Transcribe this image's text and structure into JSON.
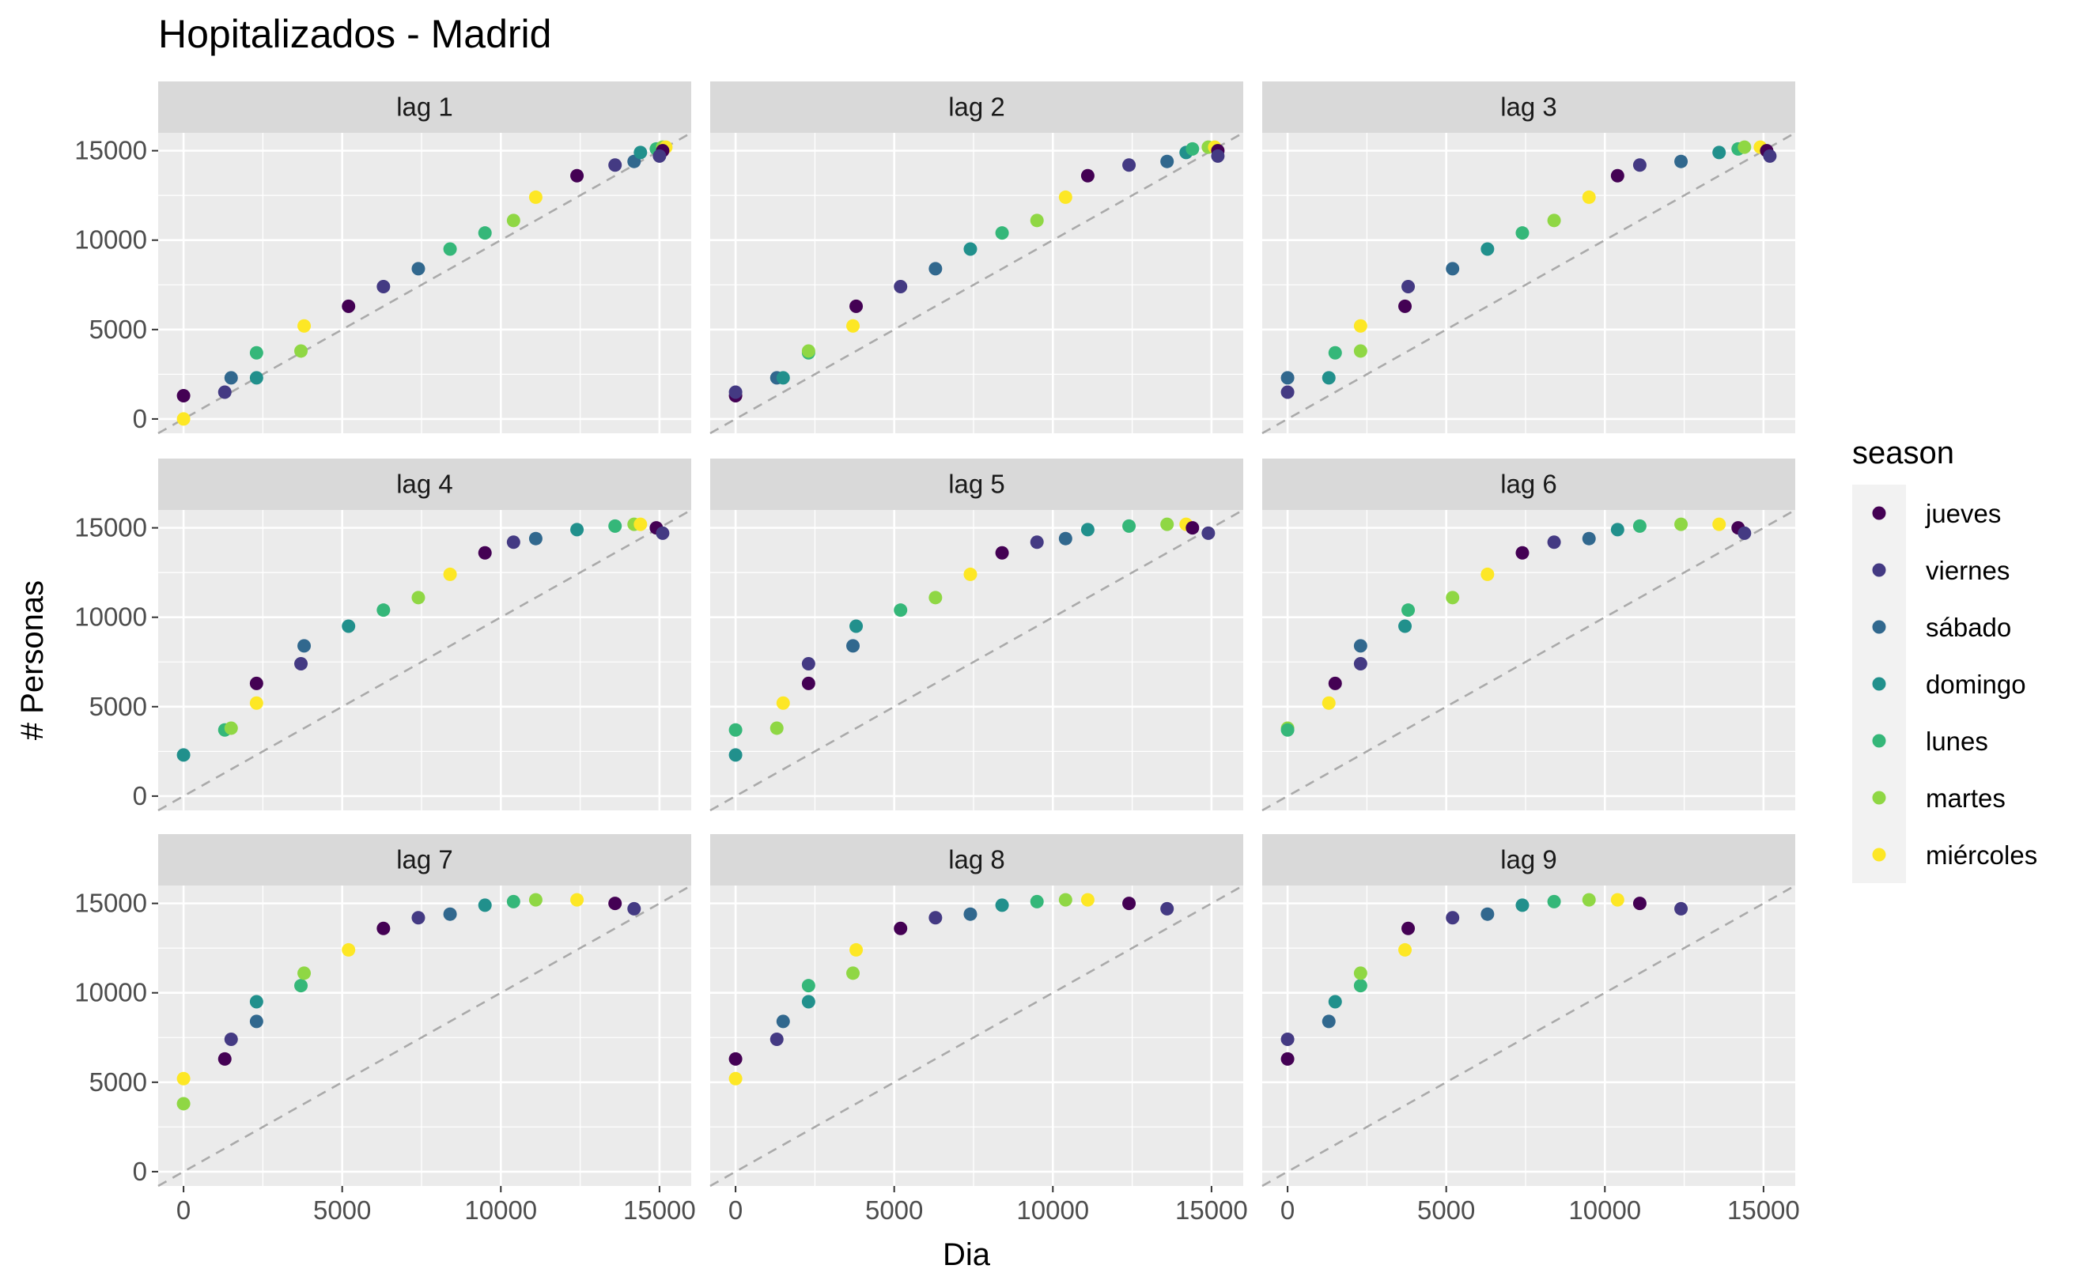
{
  "chart_data": {
    "type": "scatter",
    "title": "Hopitalizados - Madrid",
    "xlabel": "Dia",
    "ylabel": "# Personas",
    "xlim": [
      -800,
      16000
    ],
    "ylim": [
      -800,
      16000
    ],
    "x_ticks": [
      0,
      5000,
      10000,
      15000
    ],
    "y_ticks": [
      0,
      5000,
      10000,
      15000
    ],
    "grid": true,
    "reference_line": "y = x (dashed)",
    "legend": {
      "title": "season",
      "position": "right",
      "items": [
        {
          "label": "jueves",
          "color": "#440154"
        },
        {
          "label": "viernes",
          "color": "#443A83"
        },
        {
          "label": "sábado",
          "color": "#31688E"
        },
        {
          "label": "domingo",
          "color": "#21908C"
        },
        {
          "label": "lunes",
          "color": "#35B779"
        },
        {
          "label": "martes",
          "color": "#8FD744"
        },
        {
          "label": "miércoles",
          "color": "#FDE725"
        }
      ]
    },
    "facets": [
      {
        "label": "lag 1",
        "points": [
          {
            "x": 0,
            "y": 1300,
            "c": 0
          },
          {
            "x": 0,
            "y": 0,
            "c": 6
          },
          {
            "x": 1300,
            "y": 1500,
            "c": 1
          },
          {
            "x": 1500,
            "y": 2300,
            "c": 2
          },
          {
            "x": 2300,
            "y": 2300,
            "c": 3
          },
          {
            "x": 2300,
            "y": 3700,
            "c": 4
          },
          {
            "x": 3700,
            "y": 3800,
            "c": 5
          },
          {
            "x": 3800,
            "y": 5200,
            "c": 6
          },
          {
            "x": 5200,
            "y": 6300,
            "c": 0
          },
          {
            "x": 6300,
            "y": 7400,
            "c": 1
          },
          {
            "x": 7400,
            "y": 8400,
            "c": 2
          },
          {
            "x": 8400,
            "y": 9500,
            "c": 4
          },
          {
            "x": 9500,
            "y": 10400,
            "c": 4
          },
          {
            "x": 10400,
            "y": 11100,
            "c": 5
          },
          {
            "x": 11100,
            "y": 12400,
            "c": 6
          },
          {
            "x": 12400,
            "y": 13600,
            "c": 0
          },
          {
            "x": 13600,
            "y": 14200,
            "c": 1
          },
          {
            "x": 14200,
            "y": 14400,
            "c": 2
          },
          {
            "x": 14400,
            "y": 14900,
            "c": 3
          },
          {
            "x": 14900,
            "y": 15100,
            "c": 4
          },
          {
            "x": 15100,
            "y": 15200,
            "c": 5
          },
          {
            "x": 15200,
            "y": 15200,
            "c": 6
          },
          {
            "x": 15100,
            "y": 15000,
            "c": 0
          },
          {
            "x": 15000,
            "y": 14700,
            "c": 1
          }
        ]
      },
      {
        "label": "lag 2",
        "points": [
          {
            "x": 0,
            "y": 1300,
            "c": 0
          },
          {
            "x": 0,
            "y": 1500,
            "c": 1
          },
          {
            "x": 1300,
            "y": 2300,
            "c": 2
          },
          {
            "x": 1500,
            "y": 2300,
            "c": 3
          },
          {
            "x": 2300,
            "y": 3700,
            "c": 4
          },
          {
            "x": 2300,
            "y": 3800,
            "c": 5
          },
          {
            "x": 3700,
            "y": 5200,
            "c": 6
          },
          {
            "x": 3800,
            "y": 6300,
            "c": 0
          },
          {
            "x": 5200,
            "y": 7400,
            "c": 1
          },
          {
            "x": 6300,
            "y": 8400,
            "c": 2
          },
          {
            "x": 7400,
            "y": 9500,
            "c": 3
          },
          {
            "x": 8400,
            "y": 10400,
            "c": 4
          },
          {
            "x": 9500,
            "y": 11100,
            "c": 5
          },
          {
            "x": 10400,
            "y": 12400,
            "c": 6
          },
          {
            "x": 11100,
            "y": 13600,
            "c": 0
          },
          {
            "x": 12400,
            "y": 14200,
            "c": 1
          },
          {
            "x": 13600,
            "y": 14400,
            "c": 2
          },
          {
            "x": 14200,
            "y": 14900,
            "c": 3
          },
          {
            "x": 14400,
            "y": 15100,
            "c": 4
          },
          {
            "x": 14900,
            "y": 15200,
            "c": 5
          },
          {
            "x": 15100,
            "y": 15200,
            "c": 6
          },
          {
            "x": 15200,
            "y": 15000,
            "c": 0
          },
          {
            "x": 15200,
            "y": 14700,
            "c": 1
          }
        ]
      },
      {
        "label": "lag 3",
        "points": [
          {
            "x": 0,
            "y": 2300,
            "c": 2
          },
          {
            "x": 0,
            "y": 1500,
            "c": 1
          },
          {
            "x": 1300,
            "y": 2300,
            "c": 3
          },
          {
            "x": 1500,
            "y": 3700,
            "c": 4
          },
          {
            "x": 2300,
            "y": 3800,
            "c": 5
          },
          {
            "x": 2300,
            "y": 5200,
            "c": 6
          },
          {
            "x": 3700,
            "y": 6300,
            "c": 0
          },
          {
            "x": 3800,
            "y": 7400,
            "c": 1
          },
          {
            "x": 5200,
            "y": 8400,
            "c": 2
          },
          {
            "x": 6300,
            "y": 9500,
            "c": 3
          },
          {
            "x": 7400,
            "y": 10400,
            "c": 4
          },
          {
            "x": 8400,
            "y": 11100,
            "c": 5
          },
          {
            "x": 9500,
            "y": 12400,
            "c": 6
          },
          {
            "x": 10400,
            "y": 13600,
            "c": 0
          },
          {
            "x": 11100,
            "y": 14200,
            "c": 1
          },
          {
            "x": 12400,
            "y": 14400,
            "c": 2
          },
          {
            "x": 13600,
            "y": 14900,
            "c": 3
          },
          {
            "x": 14200,
            "y": 15100,
            "c": 4
          },
          {
            "x": 14400,
            "y": 15200,
            "c": 5
          },
          {
            "x": 14900,
            "y": 15200,
            "c": 6
          },
          {
            "x": 15100,
            "y": 15000,
            "c": 0
          },
          {
            "x": 15200,
            "y": 14700,
            "c": 1
          }
        ]
      },
      {
        "label": "lag 4",
        "points": [
          {
            "x": 0,
            "y": 2300,
            "c": 3
          },
          {
            "x": 1300,
            "y": 3700,
            "c": 4
          },
          {
            "x": 1500,
            "y": 3800,
            "c": 5
          },
          {
            "x": 2300,
            "y": 5200,
            "c": 6
          },
          {
            "x": 2300,
            "y": 6300,
            "c": 0
          },
          {
            "x": 3700,
            "y": 7400,
            "c": 1
          },
          {
            "x": 3800,
            "y": 8400,
            "c": 2
          },
          {
            "x": 5200,
            "y": 9500,
            "c": 3
          },
          {
            "x": 6300,
            "y": 10400,
            "c": 4
          },
          {
            "x": 7400,
            "y": 11100,
            "c": 5
          },
          {
            "x": 8400,
            "y": 12400,
            "c": 6
          },
          {
            "x": 9500,
            "y": 13600,
            "c": 0
          },
          {
            "x": 10400,
            "y": 14200,
            "c": 1
          },
          {
            "x": 11100,
            "y": 14400,
            "c": 2
          },
          {
            "x": 12400,
            "y": 14900,
            "c": 3
          },
          {
            "x": 13600,
            "y": 15100,
            "c": 4
          },
          {
            "x": 14200,
            "y": 15200,
            "c": 5
          },
          {
            "x": 14400,
            "y": 15200,
            "c": 6
          },
          {
            "x": 14900,
            "y": 15000,
            "c": 0
          },
          {
            "x": 15100,
            "y": 14700,
            "c": 1
          }
        ]
      },
      {
        "label": "lag 5",
        "points": [
          {
            "x": 0,
            "y": 3700,
            "c": 4
          },
          {
            "x": 0,
            "y": 2300,
            "c": 3
          },
          {
            "x": 1300,
            "y": 3800,
            "c": 5
          },
          {
            "x": 1500,
            "y": 5200,
            "c": 6
          },
          {
            "x": 2300,
            "y": 6300,
            "c": 0
          },
          {
            "x": 2300,
            "y": 7400,
            "c": 1
          },
          {
            "x": 3700,
            "y": 8400,
            "c": 2
          },
          {
            "x": 3800,
            "y": 9500,
            "c": 3
          },
          {
            "x": 5200,
            "y": 10400,
            "c": 4
          },
          {
            "x": 6300,
            "y": 11100,
            "c": 5
          },
          {
            "x": 7400,
            "y": 12400,
            "c": 6
          },
          {
            "x": 8400,
            "y": 13600,
            "c": 0
          },
          {
            "x": 9500,
            "y": 14200,
            "c": 1
          },
          {
            "x": 10400,
            "y": 14400,
            "c": 2
          },
          {
            "x": 11100,
            "y": 14900,
            "c": 3
          },
          {
            "x": 12400,
            "y": 15100,
            "c": 4
          },
          {
            "x": 13600,
            "y": 15200,
            "c": 5
          },
          {
            "x": 14200,
            "y": 15200,
            "c": 6
          },
          {
            "x": 14400,
            "y": 15000,
            "c": 0
          },
          {
            "x": 14900,
            "y": 14700,
            "c": 1
          }
        ]
      },
      {
        "label": "lag 6",
        "points": [
          {
            "x": 0,
            "y": 3800,
            "c": 5
          },
          {
            "x": 0,
            "y": 3700,
            "c": 4
          },
          {
            "x": 1300,
            "y": 5200,
            "c": 6
          },
          {
            "x": 1500,
            "y": 6300,
            "c": 0
          },
          {
            "x": 2300,
            "y": 7400,
            "c": 1
          },
          {
            "x": 2300,
            "y": 8400,
            "c": 2
          },
          {
            "x": 3700,
            "y": 9500,
            "c": 3
          },
          {
            "x": 3800,
            "y": 10400,
            "c": 4
          },
          {
            "x": 5200,
            "y": 11100,
            "c": 5
          },
          {
            "x": 6300,
            "y": 12400,
            "c": 6
          },
          {
            "x": 7400,
            "y": 13600,
            "c": 0
          },
          {
            "x": 8400,
            "y": 14200,
            "c": 1
          },
          {
            "x": 9500,
            "y": 14400,
            "c": 2
          },
          {
            "x": 10400,
            "y": 14900,
            "c": 3
          },
          {
            "x": 11100,
            "y": 15100,
            "c": 4
          },
          {
            "x": 12400,
            "y": 15200,
            "c": 5
          },
          {
            "x": 13600,
            "y": 15200,
            "c": 6
          },
          {
            "x": 14200,
            "y": 15000,
            "c": 0
          },
          {
            "x": 14400,
            "y": 14700,
            "c": 1
          }
        ]
      },
      {
        "label": "lag 7",
        "points": [
          {
            "x": 0,
            "y": 5200,
            "c": 6
          },
          {
            "x": 0,
            "y": 3800,
            "c": 5
          },
          {
            "x": 1300,
            "y": 6300,
            "c": 0
          },
          {
            "x": 1500,
            "y": 7400,
            "c": 1
          },
          {
            "x": 2300,
            "y": 8400,
            "c": 2
          },
          {
            "x": 2300,
            "y": 9500,
            "c": 3
          },
          {
            "x": 3700,
            "y": 10400,
            "c": 4
          },
          {
            "x": 3800,
            "y": 11100,
            "c": 5
          },
          {
            "x": 5200,
            "y": 12400,
            "c": 6
          },
          {
            "x": 6300,
            "y": 13600,
            "c": 0
          },
          {
            "x": 7400,
            "y": 14200,
            "c": 1
          },
          {
            "x": 8400,
            "y": 14400,
            "c": 2
          },
          {
            "x": 9500,
            "y": 14900,
            "c": 3
          },
          {
            "x": 10400,
            "y": 15100,
            "c": 4
          },
          {
            "x": 11100,
            "y": 15200,
            "c": 5
          },
          {
            "x": 12400,
            "y": 15200,
            "c": 6
          },
          {
            "x": 13600,
            "y": 15000,
            "c": 0
          },
          {
            "x": 14200,
            "y": 14700,
            "c": 1
          }
        ]
      },
      {
        "label": "lag 8",
        "points": [
          {
            "x": 0,
            "y": 6300,
            "c": 0
          },
          {
            "x": 0,
            "y": 5200,
            "c": 6
          },
          {
            "x": 1300,
            "y": 7400,
            "c": 1
          },
          {
            "x": 1500,
            "y": 8400,
            "c": 2
          },
          {
            "x": 2300,
            "y": 9500,
            "c": 3
          },
          {
            "x": 2300,
            "y": 10400,
            "c": 4
          },
          {
            "x": 3700,
            "y": 11100,
            "c": 5
          },
          {
            "x": 3800,
            "y": 12400,
            "c": 6
          },
          {
            "x": 5200,
            "y": 13600,
            "c": 0
          },
          {
            "x": 6300,
            "y": 14200,
            "c": 1
          },
          {
            "x": 7400,
            "y": 14400,
            "c": 2
          },
          {
            "x": 8400,
            "y": 14900,
            "c": 3
          },
          {
            "x": 9500,
            "y": 15100,
            "c": 4
          },
          {
            "x": 10400,
            "y": 15200,
            "c": 5
          },
          {
            "x": 11100,
            "y": 15200,
            "c": 6
          },
          {
            "x": 12400,
            "y": 15000,
            "c": 0
          },
          {
            "x": 13600,
            "y": 14700,
            "c": 1
          }
        ]
      },
      {
        "label": "lag 9",
        "points": [
          {
            "x": 0,
            "y": 7400,
            "c": 1
          },
          {
            "x": 0,
            "y": 6300,
            "c": 0
          },
          {
            "x": 1300,
            "y": 8400,
            "c": 2
          },
          {
            "x": 1500,
            "y": 9500,
            "c": 3
          },
          {
            "x": 2300,
            "y": 10400,
            "c": 4
          },
          {
            "x": 2300,
            "y": 11100,
            "c": 5
          },
          {
            "x": 3700,
            "y": 12400,
            "c": 6
          },
          {
            "x": 3800,
            "y": 13600,
            "c": 0
          },
          {
            "x": 5200,
            "y": 14200,
            "c": 1
          },
          {
            "x": 6300,
            "y": 14400,
            "c": 2
          },
          {
            "x": 7400,
            "y": 14900,
            "c": 3
          },
          {
            "x": 8400,
            "y": 15100,
            "c": 4
          },
          {
            "x": 9500,
            "y": 15200,
            "c": 5
          },
          {
            "x": 10400,
            "y": 15200,
            "c": 6
          },
          {
            "x": 11100,
            "y": 15000,
            "c": 0
          },
          {
            "x": 12400,
            "y": 14700,
            "c": 1
          }
        ]
      }
    ]
  }
}
